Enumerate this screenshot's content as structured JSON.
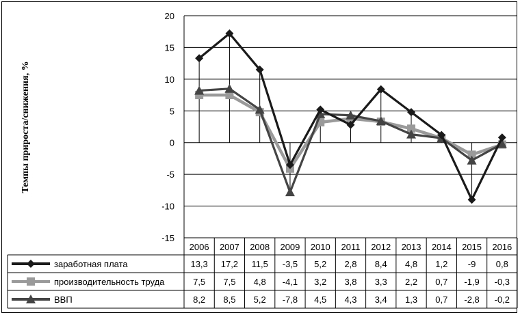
{
  "chart_data": {
    "type": "line",
    "ylabel": "Темпы прироста/снижения, %",
    "ylim": [
      -15,
      20
    ],
    "y_ticks": [
      "20",
      "15",
      "10",
      "5",
      "0",
      "-5",
      "-10",
      "-15"
    ],
    "y_tick_values": [
      20,
      15,
      10,
      5,
      0,
      -5,
      -10,
      -15
    ],
    "categories": [
      "2006",
      "2007",
      "2008",
      "2009",
      "2010",
      "2011",
      "2012",
      "2013",
      "2014",
      "2015",
      "2016"
    ],
    "grid": true,
    "legend": "data-table",
    "series": [
      {
        "name": "заработная  плата",
        "marker": "diamond",
        "color": "#1a1a1a",
        "values": [
          13.3,
          17.2,
          11.5,
          -3.5,
          5.2,
          2.8,
          8.4,
          4.8,
          1.2,
          -9,
          0.8
        ],
        "labels": [
          "13,3",
          "17,2",
          "11,5",
          "-3,5",
          "5,2",
          "2,8",
          "8,4",
          "4,8",
          "1,2",
          "-9",
          "0,8"
        ]
      },
      {
        "name": "производительность труда",
        "marker": "square",
        "color": "#9a9a9a",
        "values": [
          7.5,
          7.5,
          4.8,
          -4.1,
          3.2,
          3.8,
          3.3,
          2.2,
          0.7,
          -1.9,
          -0.3
        ],
        "labels": [
          "7,5",
          "7,5",
          "4,8",
          "-4,1",
          "3,2",
          "3,8",
          "3,3",
          "2,2",
          "0,7",
          "-1,9",
          "-0,3"
        ]
      },
      {
        "name": "ВВП",
        "marker": "triangle",
        "color": "#444444",
        "values": [
          8.2,
          8.5,
          5.2,
          -7.8,
          4.5,
          4.3,
          3.4,
          1.3,
          0.7,
          -2.8,
          -0.2
        ],
        "labels": [
          "8,2",
          "8,5",
          "5,2",
          "-7,8",
          "4,5",
          "4,3",
          "3,4",
          "1,3",
          "0,7",
          "-2,8",
          "-0,2"
        ]
      }
    ]
  }
}
